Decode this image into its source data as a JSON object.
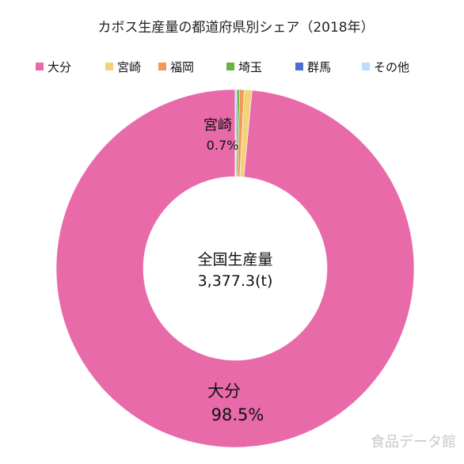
{
  "chart_data": {
    "type": "pie",
    "title": "カボス生産量の都道府県別シェア（2018年）",
    "categories": [
      "大分",
      "宮崎",
      "福岡",
      "埼玉",
      "群馬",
      "その他"
    ],
    "values": [
      98.5,
      0.7,
      0.4,
      0.2,
      0.1,
      0.1
    ],
    "unit": "%",
    "legend_position": "top",
    "donut": true,
    "center_label": "全国生産量",
    "center_value": "3,377.3(t)",
    "data_labels": [
      {
        "name": "大分",
        "value": "98.5%"
      },
      {
        "name": "宮崎",
        "value": "0.7%"
      }
    ],
    "colors": [
      "#e86aa9",
      "#f2d37a",
      "#ef9a5a",
      "#6db33f",
      "#4f6fcf",
      "#bcdcf7"
    ]
  },
  "watermark": "食品データ館"
}
